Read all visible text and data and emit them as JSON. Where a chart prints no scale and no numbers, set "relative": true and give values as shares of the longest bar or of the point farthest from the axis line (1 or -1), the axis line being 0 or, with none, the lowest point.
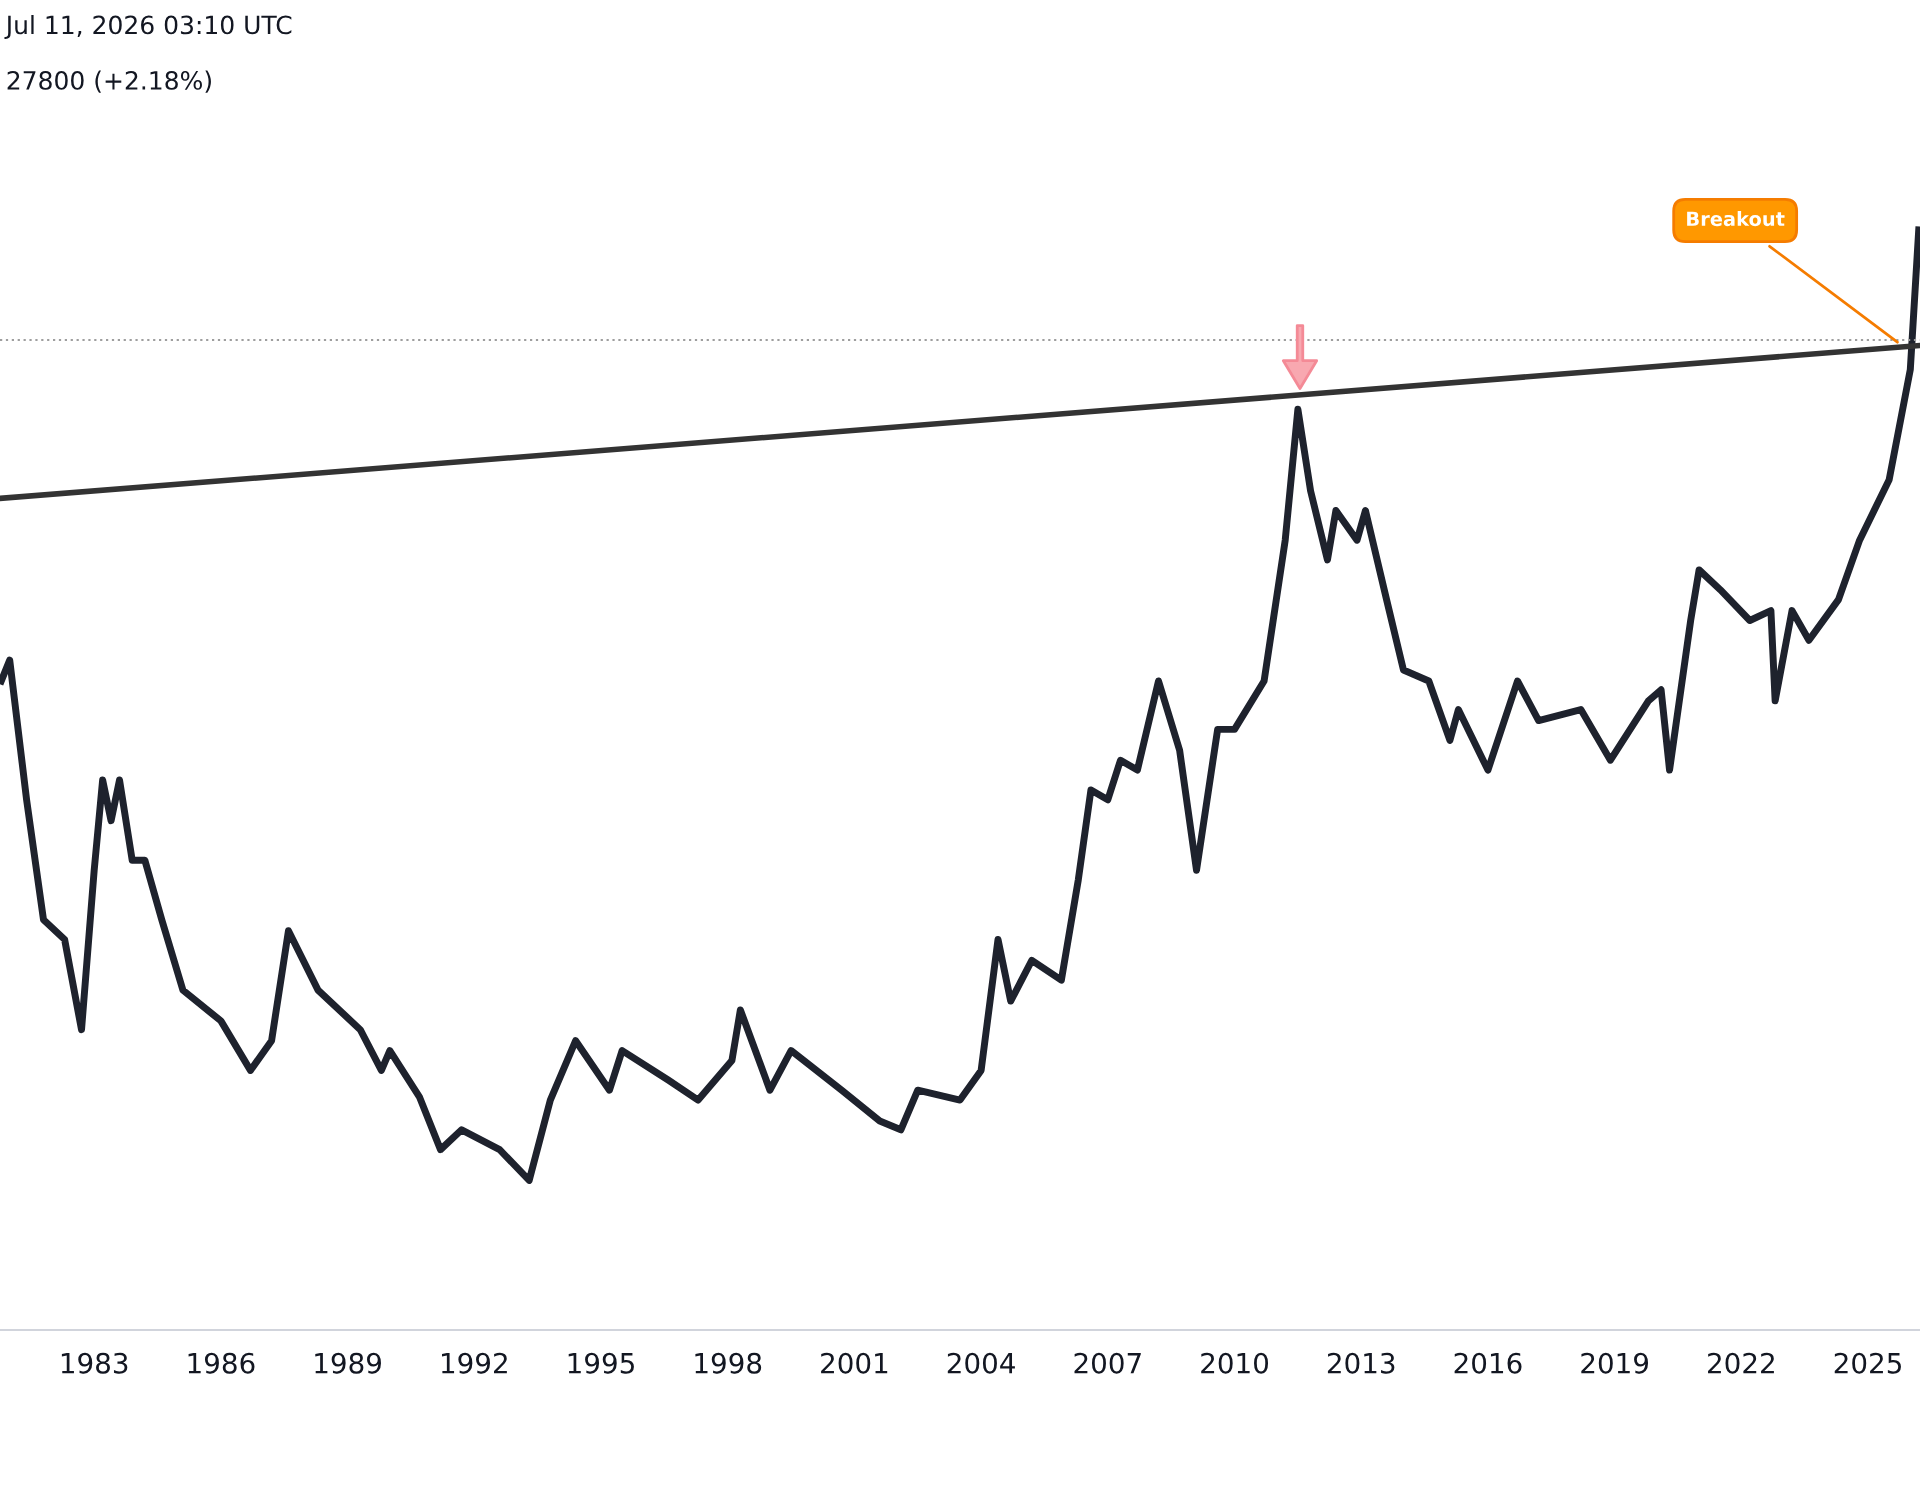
{
  "chart_data": {
    "type": "line",
    "relative": true,
    "annotations": [
      "Jul 11, 2026 03:10 UTC",
      "27800 (+2.18%)",
      {
        "text": "Breakout",
        "x": 2025.8,
        "y": 0.895
      }
    ],
    "xlim": [
      1980.77,
      2026.23
    ],
    "xticks": [
      1983,
      1986,
      1989,
      1992,
      1995,
      1998,
      2001,
      2004,
      2007,
      2010,
      2013,
      2016,
      2019,
      2022,
      2025
    ],
    "grid": false,
    "legend": false,
    "marker": "none",
    "line_style": "solid",
    "ref_lines": [
      {
        "axis": "y",
        "value": 0.9,
        "label": null,
        "color": "#9e9e9e",
        "line_style": "dotted"
      }
    ],
    "series": [
      {
        "color": "#1e222d",
        "x": [
          1980.8,
          1981.0,
          1981.4,
          1981.8,
          1982.3,
          1982.7,
          1983.0,
          1983.2,
          1983.4,
          1983.6,
          1983.9,
          1984.2,
          1984.6,
          1985.1,
          1986.0,
          1986.7,
          1987.2,
          1987.6,
          1988.3,
          1989.3,
          1989.8,
          1990.0,
          1990.7,
          1991.2,
          1991.7,
          1992.6,
          1993.3,
          1993.8,
          1994.4,
          1995.2,
          1995.5,
          1996.6,
          1997.3,
          1998.1,
          1998.3,
          1999.0,
          1999.5,
          2000.7,
          2001.6,
          2002.1,
          2002.5,
          2003.5,
          2004.0,
          2004.4,
          2004.7,
          2005.2,
          2005.9,
          2006.3,
          2006.6,
          2007.0,
          2007.3,
          2007.7,
          2008.2,
          2008.7,
          2009.1,
          2009.6,
          2010.0,
          2010.7,
          2011.2,
          2011.5,
          2011.8,
          2012.2,
          2012.4,
          2012.9,
          2013.1,
          2013.6,
          2014.0,
          2014.6,
          2015.1,
          2015.3,
          2016.0,
          2016.7,
          2017.2,
          2018.2,
          2018.9,
          2019.8,
          2020.1,
          2020.3,
          2020.8,
          2021.0,
          2021.5,
          2022.2,
          2022.7,
          2022.8,
          2023.2,
          2023.6,
          2024.3,
          2024.8,
          2025.5,
          2026.0,
          2026.2
        ],
        "values": [
          0.59,
          0.609,
          0.482,
          0.373,
          0.355,
          0.273,
          0.418,
          0.5,
          0.463,
          0.5,
          0.427,
          0.427,
          0.373,
          0.309,
          0.281,
          0.236,
          0.263,
          0.363,
          0.309,
          0.273,
          0.236,
          0.254,
          0.212,
          0.164,
          0.182,
          0.164,
          0.136,
          0.209,
          0.263,
          0.218,
          0.254,
          0.227,
          0.209,
          0.245,
          0.291,
          0.218,
          0.254,
          0.218,
          0.19,
          0.182,
          0.218,
          0.209,
          0.236,
          0.355,
          0.299,
          0.336,
          0.318,
          0.409,
          0.491,
          0.482,
          0.518,
          0.509,
          0.59,
          0.527,
          0.418,
          0.546,
          0.546,
          0.59,
          0.718,
          0.837,
          0.763,
          0.7,
          0.745,
          0.718,
          0.745,
          0.664,
          0.6,
          0.59,
          0.536,
          0.564,
          0.509,
          0.59,
          0.554,
          0.564,
          0.518,
          0.572,
          0.582,
          0.509,
          0.645,
          0.691,
          0.673,
          0.645,
          0.654,
          0.572,
          0.654,
          0.627,
          0.664,
          0.718,
          0.773,
          0.873,
          1.0
        ]
      },
      {
        "type": "line",
        "color": "#333333",
        "x": [
          1980.77,
          2026.23
        ],
        "values": [
          0.756,
          0.895
        ]
      }
    ]
  }
}
